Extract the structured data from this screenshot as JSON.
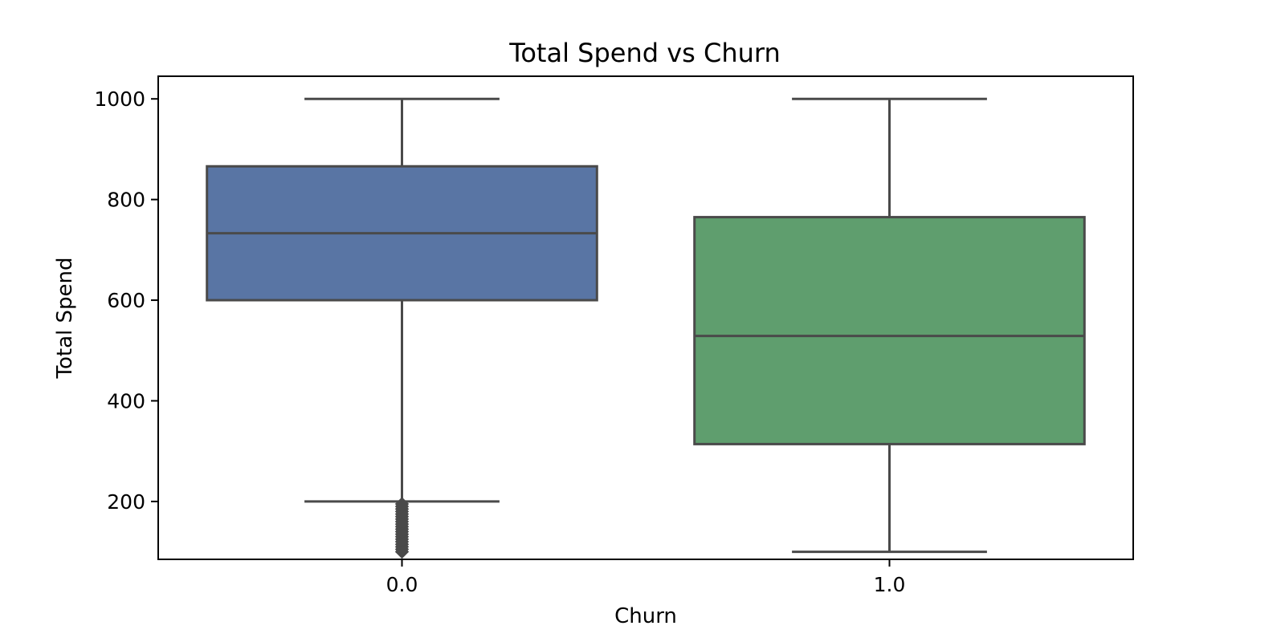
{
  "chart_data": {
    "type": "box",
    "title": "Total Spend vs Churn",
    "xlabel": "Churn",
    "ylabel": "Total Spend",
    "categories": [
      "0.0",
      "1.0"
    ],
    "ylim": [
      85,
      1045
    ],
    "yticks": [
      200,
      400,
      600,
      800,
      1000
    ],
    "grid": false,
    "legend": "none",
    "boxes": [
      {
        "category": "0.0",
        "whisker_low": 200,
        "q1": 600,
        "median": 733,
        "q3": 866,
        "whisker_high": 1000,
        "outliers": [
          100,
          105,
          110,
          115,
          120,
          125,
          130,
          135,
          140,
          145,
          150,
          155,
          160,
          165,
          170,
          175,
          180,
          185,
          190,
          195
        ],
        "color": "#5975a4"
      },
      {
        "category": "1.0",
        "whisker_low": 100,
        "q1": 314,
        "median": 529,
        "q3": 765,
        "whisker_high": 1000,
        "outliers": [],
        "color": "#5f9e6e"
      }
    ],
    "line_color": "#4a4a4a"
  }
}
